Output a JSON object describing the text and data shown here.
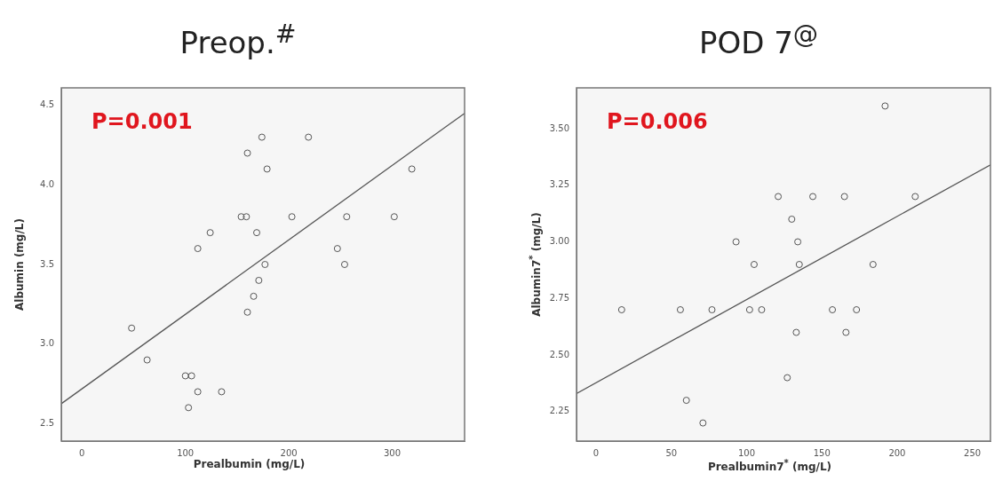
{
  "chart_data": [
    {
      "type": "scatter",
      "title": "Preop.$^{#}$",
      "xlabel": "Prealbumin (mg/L)",
      "ylabel": "Albumin (mg/L)",
      "annotations": [
        "P=0.001"
      ],
      "grid": false,
      "legend": false,
      "marker": "circle",
      "xlim": [
        -20,
        370
      ],
      "xticks": [
        0,
        100,
        200,
        300
      ],
      "ylim": [
        2.39,
        4.61
      ],
      "yticks": [
        2.5,
        {
          "value": 3,
          "label": "3.0"
        },
        3.5,
        {
          "value": 4,
          "label": "4.0"
        },
        4.5
      ],
      "series": [
        {
          "type": "scatter",
          "color": "#555555",
          "x": [
            48,
            63,
            100,
            106,
            112,
            103,
            135,
            112,
            124,
            154,
            159,
            160,
            174,
            179,
            169,
            177,
            171,
            166,
            160,
            203,
            219,
            247,
            256,
            254,
            302,
            319
          ],
          "values": [
            3.1,
            2.9,
            2.8,
            2.8,
            2.7,
            2.6,
            2.7,
            3.6,
            3.7,
            3.8,
            3.8,
            4.2,
            4.3,
            4.1,
            3.7,
            3.5,
            3.4,
            3.3,
            3.2,
            3.8,
            4.3,
            3.6,
            3.8,
            3.5,
            3.8,
            4.1
          ]
        },
        {
          "type": "line",
          "color": "#555555",
          "marker": "none",
          "x": [
            -20,
            370
          ],
          "values": [
            2.625,
            4.45
          ]
        }
      ]
    },
    {
      "type": "scatter",
      "title": "POD 7$^{@}$",
      "xlabel": "Prealbumin7$^{*}$ (mg/L)",
      "ylabel": "Albumin7$^{*}$ (mg/L)",
      "annotations": [
        "P=0.006"
      ],
      "grid": false,
      "legend": false,
      "marker": "circle",
      "xlim": [
        -13,
        262
      ],
      "xticks": [
        0,
        50,
        100,
        150,
        200,
        250
      ],
      "ylim": [
        2.12,
        3.68
      ],
      "yticks": [
        {
          "value": 2.25,
          "label": "2.25"
        },
        {
          "value": 2.5,
          "label": "2.50"
        },
        {
          "value": 2.75,
          "label": "2.75"
        },
        {
          "value": 3,
          "label": "3.00"
        },
        {
          "value": 3.25,
          "label": "3.25"
        },
        {
          "value": 3.5,
          "label": "3.50"
        }
      ],
      "series": [
        {
          "type": "scatter",
          "color": "#555555",
          "x": [
            17,
            56,
            77,
            102,
            110,
            60,
            71,
            93,
            105,
            121,
            130,
            134,
            135,
            133,
            127,
            144,
            165,
            157,
            173,
            166,
            184,
            192,
            212
          ],
          "values": [
            2.7,
            2.7,
            2.7,
            2.7,
            2.7,
            2.3,
            2.2,
            3.0,
            2.9,
            3.2,
            3.1,
            3.0,
            2.9,
            2.6,
            2.4,
            3.2,
            3.2,
            2.7,
            2.7,
            2.6,
            2.9,
            3.6,
            3.2
          ]
        },
        {
          "type": "line",
          "color": "#555555",
          "marker": "none",
          "x": [
            -13,
            262
          ],
          "values": [
            2.33,
            3.34
          ]
        }
      ]
    }
  ]
}
